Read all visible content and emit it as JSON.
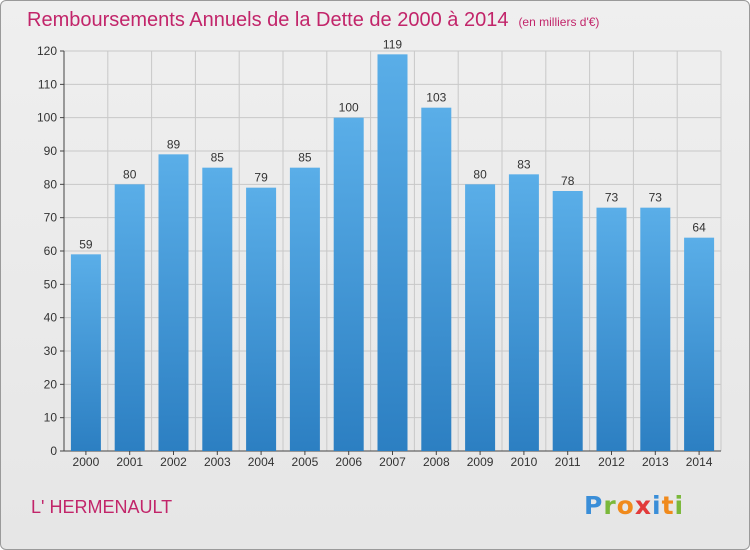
{
  "title": "Remboursements Annuels de la Dette de 2000 à 2014",
  "subtitle": "(en milliers d'€)",
  "place": "L' HERMENAULT",
  "logo": "Proxiti",
  "colors": {
    "title": "#c2256a",
    "bar_top": "#5aaee8",
    "bar_bottom": "#2c7fc2",
    "grid": "#c8c8c8"
  },
  "chart_data": {
    "type": "bar",
    "categories": [
      "2000",
      "2001",
      "2002",
      "2003",
      "2004",
      "2005",
      "2006",
      "2007",
      "2008",
      "2009",
      "2010",
      "2011",
      "2012",
      "2013",
      "2014"
    ],
    "values": [
      59,
      80,
      89,
      85,
      79,
      85,
      100,
      119,
      103,
      80,
      83,
      78,
      73,
      73,
      64
    ],
    "ylim": [
      0,
      120
    ],
    "yticks": [
      0,
      10,
      20,
      30,
      40,
      50,
      60,
      70,
      80,
      90,
      100,
      110,
      120
    ],
    "grid": true,
    "data_labels": true
  }
}
